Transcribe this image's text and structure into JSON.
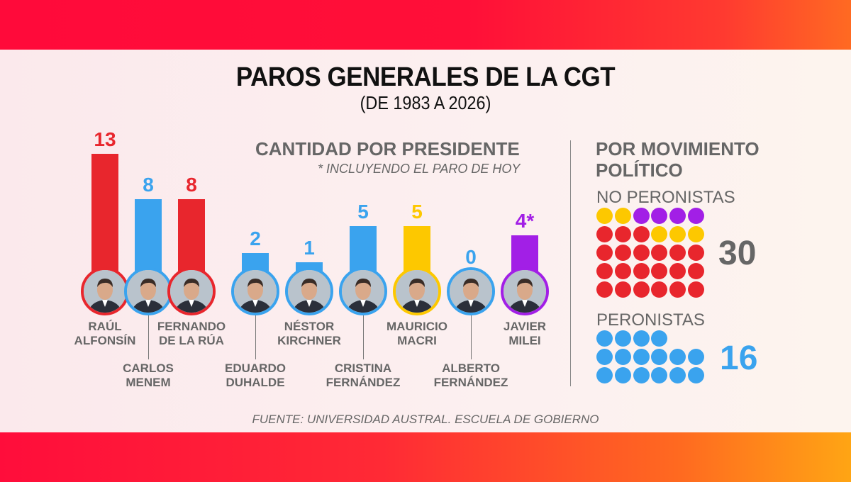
{
  "title": "PAROS GENERALES DE LA CGT",
  "subtitle": "(DE 1983 A 2026)",
  "source": "FUENTE: UNIVERSIDAD AUSTRAL. ESCUELA DE GOBIERNO",
  "colors": {
    "red": "#e8262d",
    "blue": "#3aa3ee",
    "yellow": "#fdc800",
    "purple": "#a21fe6",
    "gray": "#666666"
  },
  "chart_data": [
    {
      "type": "bar",
      "title": "CANTIDAD POR PRESIDENTE",
      "note": "* INCLUYENDO EL PARO DE HOY",
      "categories": [
        "RAÚL ALFONSÍN",
        "CARLOS MENEM",
        "FERNANDO DE LA RÚA",
        "EDUARDO DUHALDE",
        "NÉSTOR KIRCHNER",
        "CRISTINA FERNÁNDEZ",
        "MAURICIO MACRI",
        "ALBERTO FERNÁNDEZ",
        "JAVIER MILEI"
      ],
      "values": [
        13,
        8,
        8,
        2,
        1,
        5,
        5,
        0,
        4
      ],
      "value_labels": [
        "13",
        "8",
        "8",
        "2",
        "1",
        "5",
        "5",
        "0",
        "4*"
      ],
      "name_lines": [
        [
          "RAÚL",
          "ALFONSÍN"
        ],
        [
          "CARLOS",
          "MENEM"
        ],
        [
          "FERNANDO",
          "DE LA RÚA"
        ],
        [
          "EDUARDO",
          "DUHALDE"
        ],
        [
          "NÉSTOR",
          "KIRCHNER"
        ],
        [
          "CRISTINA",
          "FERNÁNDEZ"
        ],
        [
          "MAURICIO",
          "MACRI"
        ],
        [
          "ALBERTO",
          "FERNÁNDEZ"
        ],
        [
          "JAVIER",
          "MILEI"
        ]
      ],
      "bar_colors": [
        "#e8262d",
        "#3aa3ee",
        "#e8262d",
        "#3aa3ee",
        "#3aa3ee",
        "#3aa3ee",
        "#fdc800",
        "#3aa3ee",
        "#a21fe6"
      ],
      "ylim": [
        0,
        13
      ]
    },
    {
      "type": "dot-grid",
      "title": "POR MOVIMIENTO POLÍTICO",
      "groups": [
        {
          "name": "NO PERONISTAS",
          "total": "30",
          "total_color": "#666666",
          "dots": [
            {
              "color": "#fdc800",
              "count": 2
            },
            {
              "color": "#a21fe6",
              "count": 4
            },
            {
              "color": "#e8262d",
              "count": 3
            },
            {
              "color": "#fdc800",
              "count": 3
            },
            {
              "color": "#e8262d",
              "count": 18
            }
          ]
        },
        {
          "name": "PERONISTAS",
          "total": "16",
          "total_color": "#3aa3ee",
          "dots": [
            {
              "color": "#3aa3ee",
              "count": 16
            }
          ],
          "row_sizes": [
            4,
            6,
            6
          ]
        }
      ]
    }
  ]
}
